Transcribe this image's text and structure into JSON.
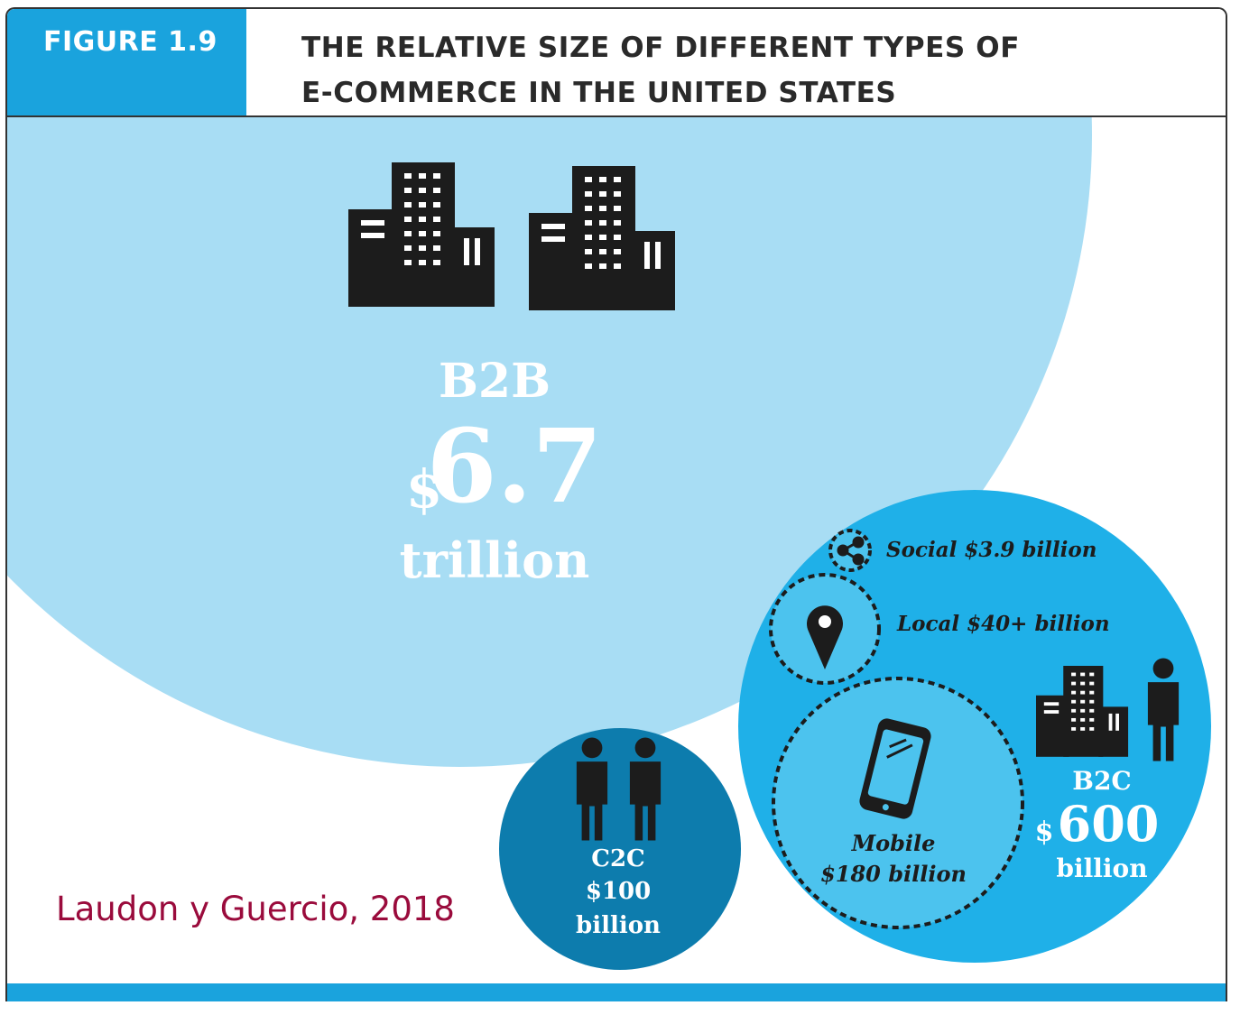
{
  "header": {
    "figure_label": "FIGURE 1.9",
    "title": "THE RELATIVE SIZE OF DIFFERENT TYPES OF E-COMMERCE IN THE UNITED STATES"
  },
  "b2b": {
    "label": "B2B",
    "currency": "$",
    "value": "6.7",
    "unit": "trillion"
  },
  "b2c": {
    "label": "B2C",
    "currency": "$",
    "value": "600",
    "unit": "billion"
  },
  "c2c": {
    "label": "C2C",
    "amount": "$100",
    "unit": "billion"
  },
  "segments": {
    "social": "Social $3.9 billion",
    "local": "Local $40+ billion",
    "mobile_label": "Mobile",
    "mobile_value": "$180 billion"
  },
  "credit": "Laudon y Guercio, 2018",
  "colors": {
    "accent_blue": "#1aa3dd",
    "b2b_light_blue": "#a8ddf4",
    "b2c_blue": "#1fb0e8",
    "mobile_blue": "#4cc3ee",
    "c2c_dark_blue": "#0d7cad",
    "credit_red": "#9a0b3c",
    "icon_black": "#1c1c1c"
  },
  "icons": [
    "office-buildings-icon",
    "share-icon",
    "map-pin-icon",
    "smartphone-icon",
    "person-icon"
  ]
}
